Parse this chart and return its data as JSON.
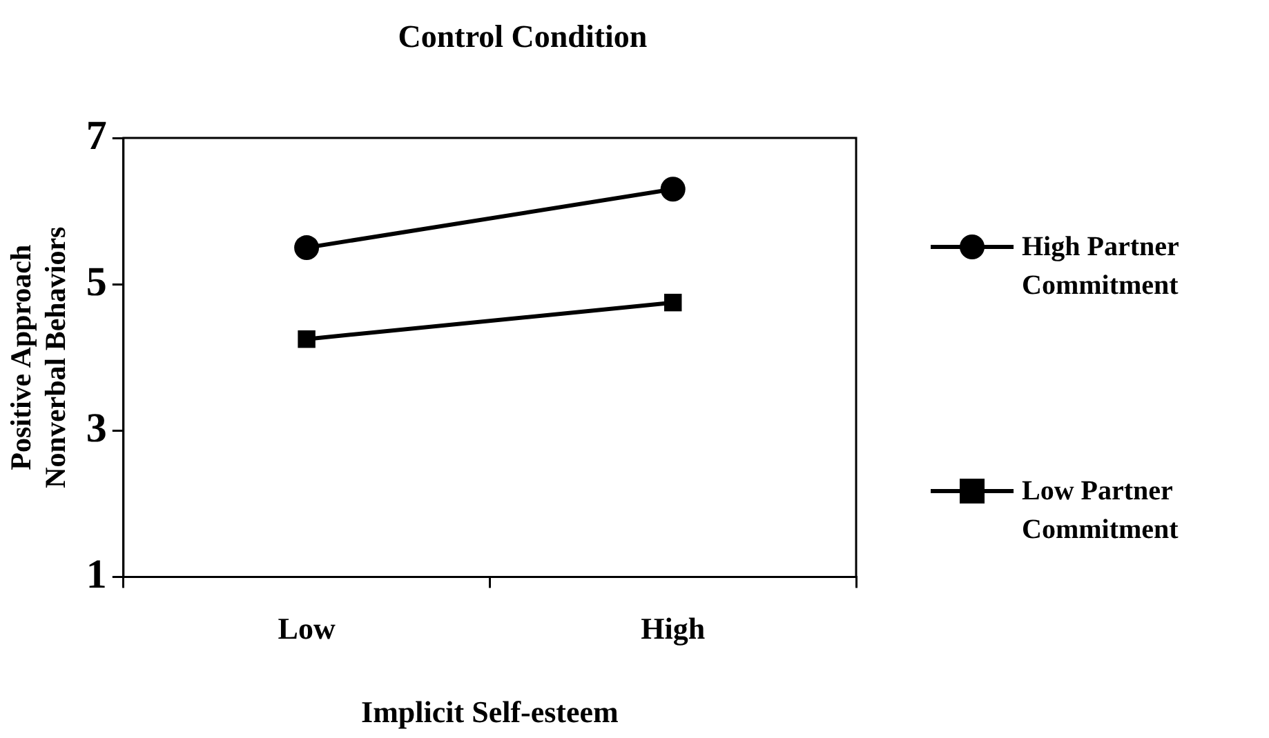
{
  "chart_data": {
    "type": "line",
    "title": "Control Condition",
    "xlabel": "Implicit Self-esteem",
    "ylabel": "Positive Approach\nNonverbal Behaviors",
    "categories": [
      "Low",
      "High"
    ],
    "series": [
      {
        "name": "High Partner Commitment",
        "color": "#000000",
        "marker": "circle",
        "values": [
          5.5,
          6.3
        ]
      },
      {
        "name": "Low Partner Commitment",
        "color": "#000000",
        "marker": "square",
        "values": [
          4.25,
          4.75
        ]
      }
    ],
    "ylim": [
      1,
      7
    ],
    "yticks": [
      1,
      3,
      5,
      7
    ],
    "grid": false,
    "legend": "right",
    "line_style": "solid"
  }
}
